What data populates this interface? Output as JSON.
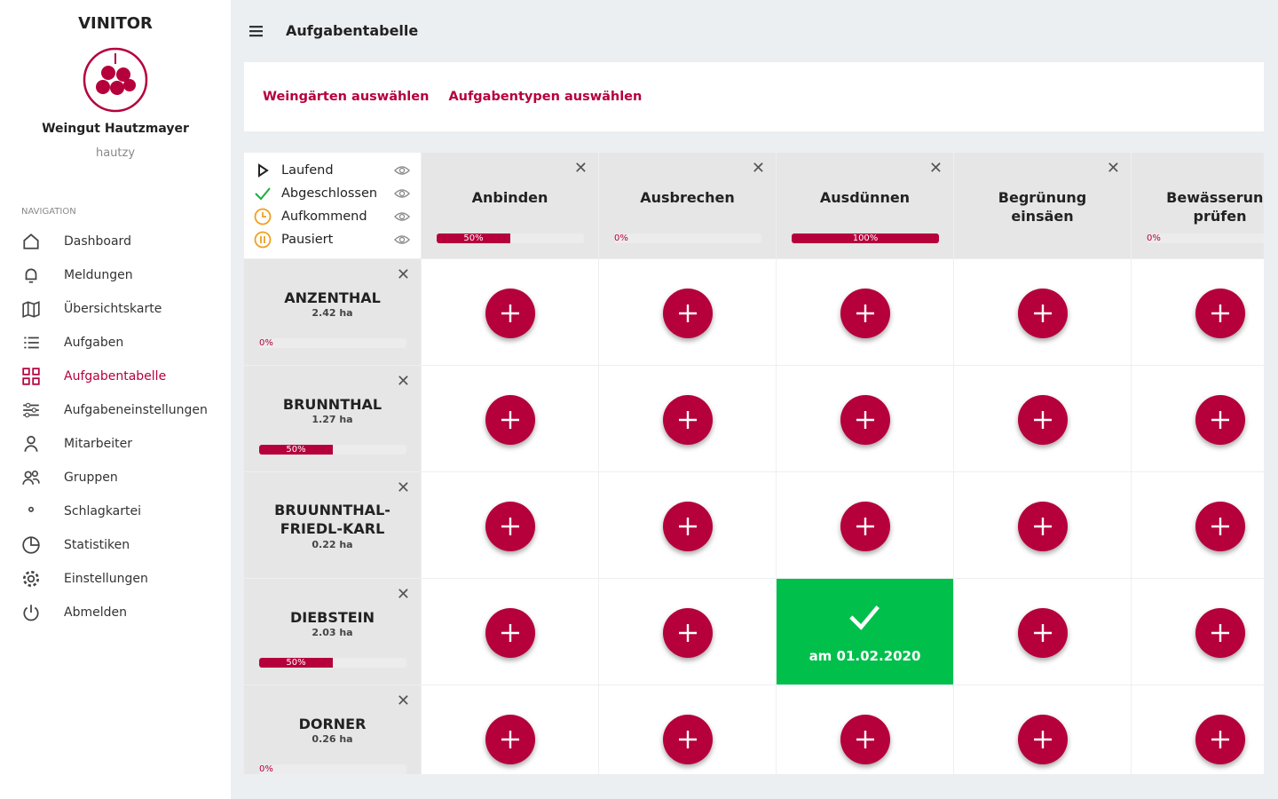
{
  "sidebar": {
    "brand": "VINITOR",
    "company": "Weingut Hautzmayer",
    "user": "hautzy",
    "nav_label": "NAVIGATION",
    "nav": [
      "Dashboard",
      "Meldungen",
      "Übersichtskarte",
      "Aufgaben",
      "Aufgabentabelle",
      "Aufgabeneinstellungen",
      "Mitarbeiter",
      "Gruppen",
      "Schlagkartei",
      "Statistiken",
      "Einstellungen",
      "Abmelden"
    ],
    "active": 4
  },
  "header": {
    "title": "Aufgabentabelle"
  },
  "filters": [
    "Weingärten auswählen",
    "Aufgabentypen auswählen"
  ],
  "legend": [
    "Laufend",
    "Abgeschlossen",
    "Aufkommend",
    "Pausiert"
  ],
  "tasks": [
    {
      "name": "Anbinden",
      "progress": 50,
      "progress_label": "50%"
    },
    {
      "name": "Ausbrechen",
      "progress": 0,
      "progress_label": "0%"
    },
    {
      "name": "Ausdünnen",
      "progress": 100,
      "progress_label": "100%"
    },
    {
      "name": "Begrünung einsäen"
    },
    {
      "name": "Bewässerung prüfen",
      "progress": 0,
      "progress_label": "0%"
    }
  ],
  "vineyards": [
    {
      "name": "ANZENTHAL",
      "area": "2.42 ha",
      "progress": 0,
      "progress_label": "0%"
    },
    {
      "name": "BRUNNTHAL",
      "area": "1.27 ha",
      "progress": 50,
      "progress_label": "50%"
    },
    {
      "name": "BRUUNNTHAL-FRIEDL-KARL",
      "area": "0.22 ha"
    },
    {
      "name": "DIEBSTEIN",
      "area": "2.03 ha",
      "progress": 50,
      "progress_label": "50%",
      "cells": [
        null,
        null,
        "am 01.02.2020",
        null,
        null
      ]
    },
    {
      "name": "DORNER",
      "area": "0.26 ha",
      "progress": 0,
      "progress_label": "0%"
    }
  ]
}
